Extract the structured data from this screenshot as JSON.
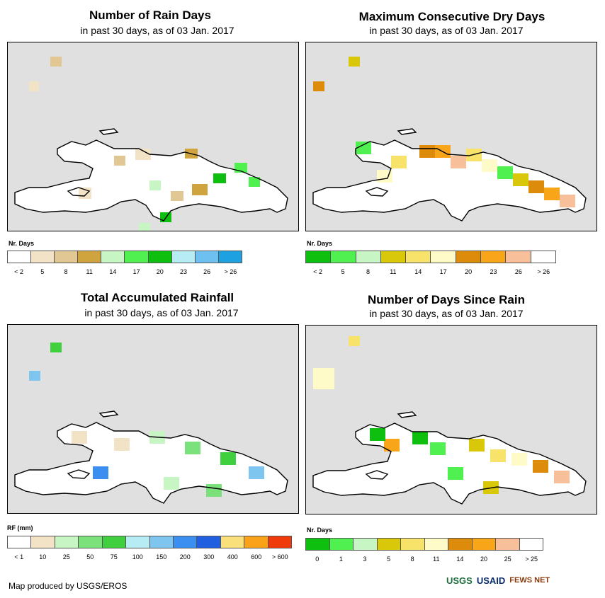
{
  "panels": [
    {
      "title": "Number of Rain Days",
      "subtitle": "in past 30 days, as of 03 Jan. 2017",
      "legend_title": "Nr. Days",
      "legend_colors": [
        "#ffffff",
        "#f3e3c6",
        "#e1c794",
        "#cfa33d",
        "#c7f5c4",
        "#4ff04f",
        "#0fbf0f",
        "#b8ecf5",
        "#6ec0f0",
        "#1ea1e0"
      ],
      "legend_labels": [
        "< 2",
        "5",
        "8",
        "11",
        "14",
        "17",
        "20",
        "23",
        "26",
        "> 26"
      ]
    },
    {
      "title": "Maximum Consecutive Dry Days",
      "subtitle": "in past 30 days, as of 03 Jan. 2017",
      "legend_title": "Nr. Days",
      "legend_colors": [
        "#0fbf0f",
        "#4ff04f",
        "#c7f5c4",
        "#d9c80a",
        "#f7e36a",
        "#fffbc8",
        "#dd8b0a",
        "#f8a51a",
        "#f8c09a",
        "#ffffff"
      ],
      "legend_labels": [
        "< 2",
        "5",
        "8",
        "11",
        "14",
        "17",
        "20",
        "23",
        "26",
        "> 26"
      ]
    },
    {
      "title": "Total Accumulated Rainfall",
      "subtitle": "in past 30 days, as of 03 Jan. 2017",
      "legend_title": "RF (mm)",
      "legend_colors": [
        "#ffffff",
        "#f3e3c6",
        "#c7f5c4",
        "#7be27b",
        "#3fcf3f",
        "#b8ecf5",
        "#7ec6f0",
        "#3b8ff0",
        "#1f5fe0",
        "#f9e07a",
        "#f9a21a",
        "#f03a0a"
      ],
      "legend_labels": [
        "< 1",
        "10",
        "25",
        "50",
        "75",
        "100",
        "150",
        "200",
        "300",
        "400",
        "600",
        "> 600"
      ]
    },
    {
      "title": "Number of Days Since Rain",
      "subtitle": "in past 30 days, as of 03 Jan. 2017",
      "legend_title": "Nr. Days",
      "legend_colors": [
        "#0fbf0f",
        "#4ff04f",
        "#c7f5c4",
        "#d9c80a",
        "#f7e36a",
        "#fffbc8",
        "#dd8b0a",
        "#f8a51a",
        "#f8c09a",
        "#ffffff"
      ],
      "legend_labels": [
        "0",
        "1",
        "3",
        "5",
        "8",
        "11",
        "14",
        "20",
        "25",
        "> 25"
      ]
    }
  ],
  "footer": "Map produced by USGS/EROS",
  "logos": [
    "USGS",
    "USAID",
    "FEWS NET"
  ]
}
